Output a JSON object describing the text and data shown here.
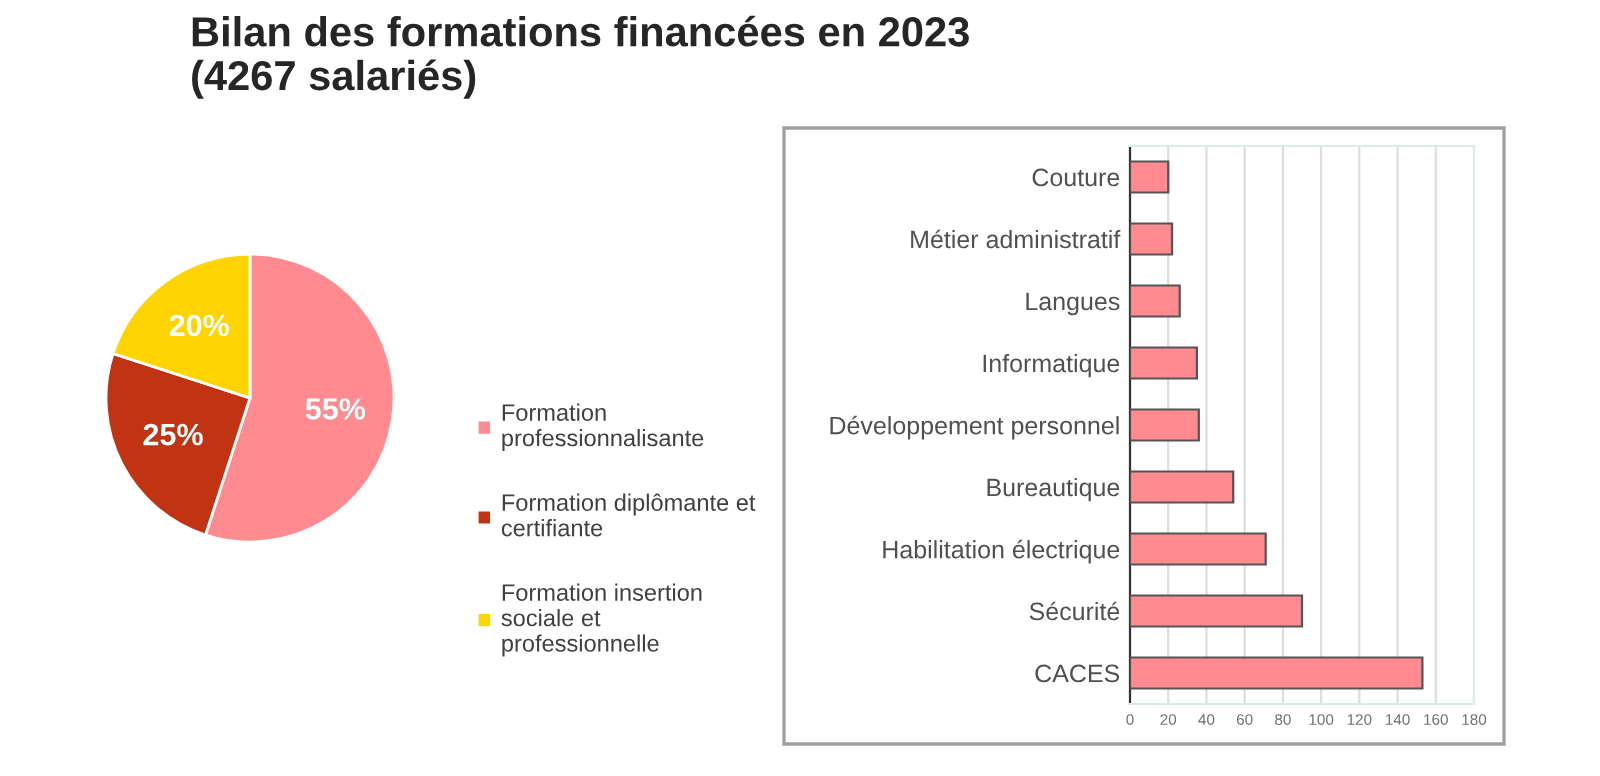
{
  "chart_data": [
    {
      "type": "pie",
      "title": "Bilan des formations financées en 2023\n(4267 salariés)",
      "categories": [
        "Formation professionnalisante",
        "Formation diplômante et certifiante",
        "Formation insertion sociale et professionnelle"
      ],
      "values": [
        55,
        25,
        20
      ],
      "colors": [
        "#ff8a8f",
        "#c23314",
        "#ffd400"
      ],
      "value_labels": [
        "55%",
        "25%",
        "20%"
      ],
      "legend": "right"
    },
    {
      "type": "bar",
      "orientation": "horizontal",
      "categories": [
        "Couture",
        "Métier administratif",
        "Langues",
        "Informatique",
        "Développement personnel",
        "Bureautique",
        "Habilitation électrique",
        "Sécurité",
        "CACES"
      ],
      "values": [
        20,
        22,
        26,
        35,
        36,
        54,
        71,
        90,
        153
      ],
      "color": "#ff8a8f",
      "xlim": [
        0,
        180
      ],
      "xticks": [
        0,
        20,
        40,
        60,
        80,
        100,
        120,
        140,
        160,
        180
      ],
      "grid": "x"
    }
  ]
}
